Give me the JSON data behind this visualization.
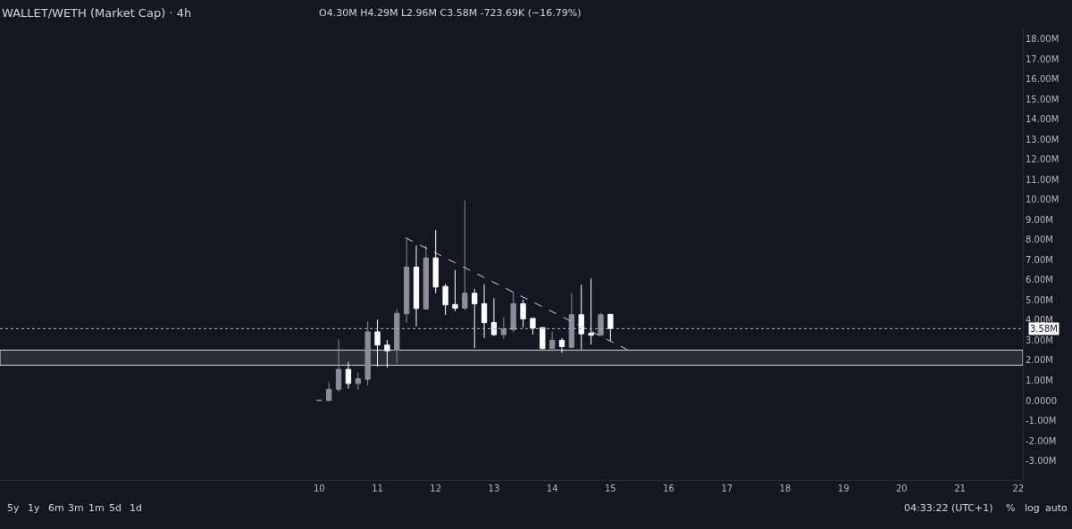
{
  "chart_data": {
    "type": "candlestick",
    "title": "WALLET/WETH (Market Cap) · 4h",
    "subtitle": "O4.30M H4.29M L2.96M C3.58M -723.69K (−16.79%)",
    "x": [
      10.0,
      10.1667,
      10.3333,
      10.5,
      10.6667,
      10.8333,
      11.0,
      11.1667,
      11.3333,
      11.5,
      11.6667,
      11.8333,
      12.0,
      12.1667,
      12.3333,
      12.5,
      12.6667,
      12.8333,
      13.0,
      13.1667,
      13.3333,
      13.5,
      13.6667,
      13.8333,
      14.0,
      14.1667,
      14.3333,
      14.5,
      14.6667,
      14.8333,
      15.0
    ],
    "ohlc": [
      [
        0.0,
        0.02,
        0.0,
        0.02
      ],
      [
        0.0,
        0.92,
        0.0,
        0.56
      ],
      [
        0.56,
        3.05,
        0.42,
        1.55
      ],
      [
        1.55,
        1.92,
        0.6,
        0.85
      ],
      [
        0.85,
        1.39,
        0.54,
        1.09
      ],
      [
        1.06,
        3.93,
        0.75,
        3.42
      ],
      [
        3.42,
        4.02,
        1.69,
        2.76
      ],
      [
        2.76,
        3.01,
        1.64,
        2.48
      ],
      [
        2.51,
        4.55,
        1.85,
        4.34
      ],
      [
        4.32,
        8.06,
        3.88,
        6.64
      ],
      [
        6.64,
        7.71,
        3.69,
        4.58
      ],
      [
        4.55,
        7.71,
        4.55,
        7.1
      ],
      [
        7.1,
        8.48,
        5.34,
        5.65
      ],
      [
        5.68,
        5.8,
        4.26,
        4.76
      ],
      [
        4.78,
        6.49,
        4.44,
        4.6
      ],
      [
        4.6,
        9.96,
        4.51,
        5.34
      ],
      [
        5.34,
        5.55,
        2.62,
        4.81
      ],
      [
        4.82,
        5.79,
        3.11,
        3.88
      ],
      [
        3.88,
        5.09,
        3.21,
        3.28
      ],
      [
        3.28,
        4.15,
        3.07,
        3.56
      ],
      [
        3.53,
        5.41,
        3.39,
        4.82
      ],
      [
        4.82,
        5.02,
        3.63,
        4.06
      ],
      [
        4.09,
        4.09,
        3.28,
        3.6
      ],
      [
        3.63,
        3.63,
        2.55,
        2.59
      ],
      [
        2.59,
        3.43,
        2.59,
        3.0
      ],
      [
        3.0,
        3.11,
        2.38,
        2.69
      ],
      [
        2.65,
        5.34,
        2.59,
        4.27
      ],
      [
        4.27,
        5.76,
        2.55,
        3.32
      ],
      [
        3.35,
        6.07,
        2.79,
        3.25
      ],
      [
        3.25,
        4.36,
        3.25,
        4.27
      ],
      [
        4.29,
        4.29,
        2.96,
        3.58
      ]
    ],
    "colors": [
      "#8b8e99",
      "#8b8e99",
      "#8b8e99",
      "#ffffff",
      "#8b8e99",
      "#8b8e99",
      "#ffffff",
      "#ffffff",
      "#8b8e99",
      "#8b8e99",
      "#ffffff",
      "#8b8e99",
      "#ffffff",
      "#ffffff",
      "#ffffff",
      "#8b8e99",
      "#ffffff",
      "#ffffff",
      "#ffffff",
      "#8b8e99",
      "#8b8e99",
      "#ffffff",
      "#ffffff",
      "#ffffff",
      "#8b8e99",
      "#ffffff",
      "#8b8e99",
      "#ffffff",
      "#ffffff",
      "#8b8e99",
      "#ffffff"
    ],
    "series": [
      {
        "type": "line",
        "x": [
          11.48,
          15.28
        ],
        "values": [
          8.1,
          2.55
        ],
        "color": "#d1d4dc",
        "line_style": "dashed"
      }
    ],
    "ref_lines": [
      {
        "axis": "y",
        "value": 3.58,
        "label": "3.58M",
        "color": "#b2b5be",
        "line_style": "dotted"
      }
    ],
    "bands": [
      {
        "axis": "y",
        "from": 1.76,
        "to": 2.51,
        "color": "#2a2e39"
      }
    ],
    "xlim": [
      4.52,
      22.08
    ],
    "xticks": [
      10,
      11,
      12,
      13,
      14,
      15,
      16,
      17,
      18,
      19,
      20,
      21,
      22
    ],
    "ylim": [
      -3.95,
      18.6
    ],
    "yticks": [
      {
        "value": -3,
        "label": "-3.00M"
      },
      {
        "value": -2,
        "label": "-2.00M"
      },
      {
        "value": -1,
        "label": "-1.00M"
      },
      {
        "value": 0,
        "label": "0.0000"
      },
      {
        "value": 1,
        "label": "1.00M"
      },
      {
        "value": 2,
        "label": "2.00M"
      },
      {
        "value": 3,
        "label": "3.00M"
      },
      {
        "value": 4,
        "label": "4.00M"
      },
      {
        "value": 5,
        "label": "5.00M"
      },
      {
        "value": 6,
        "label": "6.00M"
      },
      {
        "value": 7,
        "label": "7.00M"
      },
      {
        "value": 8,
        "label": "8.00M"
      },
      {
        "value": 9,
        "label": "9.00M"
      },
      {
        "value": 10,
        "label": "10.00M"
      },
      {
        "value": 11,
        "label": "11.00M"
      },
      {
        "value": 12,
        "label": "12.00M"
      },
      {
        "value": 13,
        "label": "13.00M"
      },
      {
        "value": 14,
        "label": "14.00M"
      },
      {
        "value": 15,
        "label": "15.00M"
      },
      {
        "value": 16,
        "label": "16.00M"
      },
      {
        "value": 17,
        "label": "17.00M"
      },
      {
        "value": 18,
        "label": "18.00M"
      }
    ],
    "grid": false,
    "annotations": [
      "5y",
      "1y",
      "6m",
      "3m",
      "1m",
      "5d",
      "1d",
      "04:33:22 (UTC+1)",
      "%",
      "log",
      "auto"
    ]
  }
}
